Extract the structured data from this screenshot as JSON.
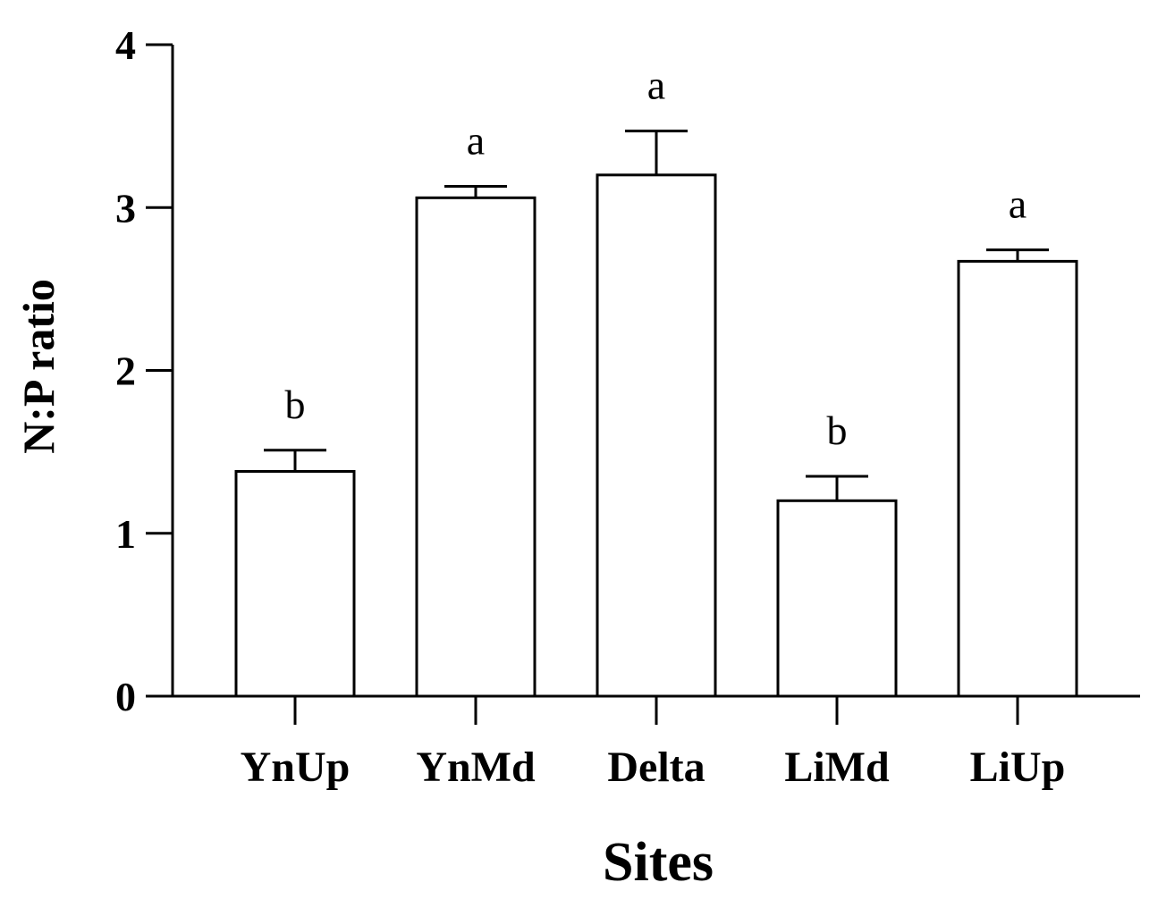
{
  "chart_data": {
    "type": "bar",
    "title": "",
    "xlabel": "Sites",
    "ylabel": "N:P ratio",
    "ylim": [
      0,
      4
    ],
    "yticks": [
      0,
      1,
      2,
      3,
      4
    ],
    "grid": false,
    "categories": [
      "YnUp",
      "YnMd",
      "Delta",
      "LiMd",
      "LiUp"
    ],
    "values": [
      1.38,
      3.06,
      3.2,
      1.2,
      2.67
    ],
    "error": [
      0.13,
      0.07,
      0.27,
      0.15,
      0.07
    ],
    "significance_labels": [
      "b",
      "a",
      "a",
      "b",
      "a"
    ],
    "colors": {
      "bar_fill": "#ffffff",
      "bar_stroke": "#000000"
    }
  }
}
